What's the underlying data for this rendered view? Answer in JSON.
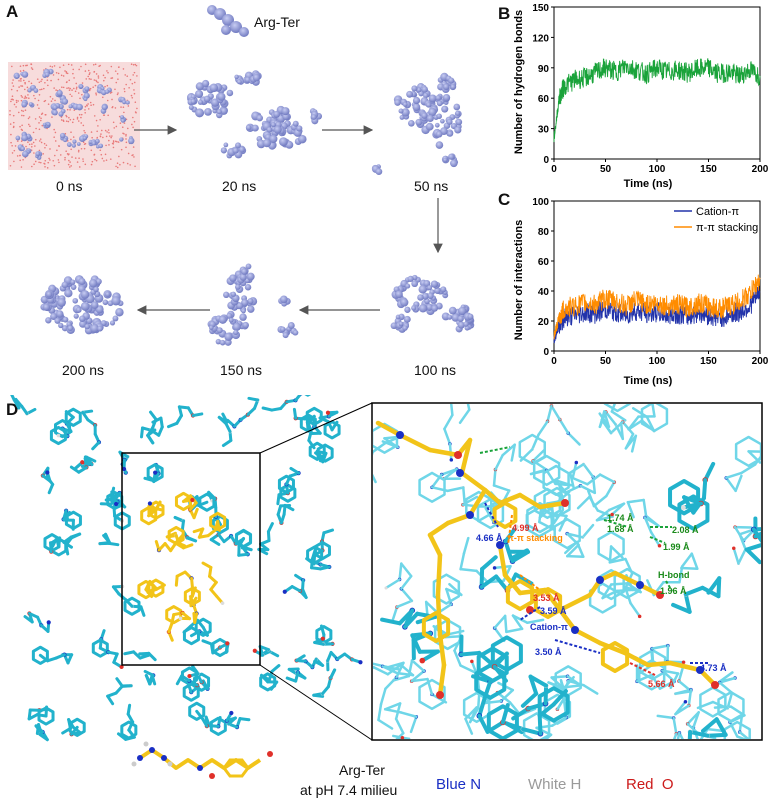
{
  "panel_letters": {
    "a": "A",
    "b": "B",
    "c": "C",
    "d": "D"
  },
  "panel_a": {
    "molecule_label": "Arg-Ter",
    "snapshots": [
      "0 ns",
      "20 ns",
      "50 ns",
      "100 ns",
      "150 ns",
      "200 ns"
    ],
    "colors": {
      "cluster": "#8f97d6",
      "water": "#e87a7a"
    }
  },
  "chart_data": [
    {
      "type": "line",
      "panel": "B",
      "ylabel": "Number of hydrogen bonds",
      "xlabel": "Time (ns)",
      "xlim": [
        0,
        200
      ],
      "ylim": [
        0,
        150
      ],
      "xticks": [
        0,
        50,
        100,
        150,
        200
      ],
      "yticks": [
        0,
        30,
        60,
        90,
        120,
        150
      ],
      "series": [
        {
          "color": "#1aa33a",
          "x": [
            0,
            5,
            10,
            20,
            30,
            40,
            50,
            60,
            70,
            80,
            90,
            100,
            110,
            120,
            130,
            140,
            150,
            160,
            170,
            180,
            190,
            200
          ],
          "values": [
            20,
            60,
            72,
            78,
            80,
            85,
            90,
            86,
            92,
            88,
            84,
            90,
            86,
            88,
            85,
            89,
            90,
            84,
            86,
            82,
            88,
            82
          ]
        }
      ]
    },
    {
      "type": "line",
      "panel": "C",
      "ylabel": "Number of interactions",
      "xlabel": "Time (ns)",
      "xlim": [
        0,
        200
      ],
      "ylim": [
        0,
        100
      ],
      "xticks": [
        0,
        50,
        100,
        150,
        200
      ],
      "yticks": [
        0,
        20,
        40,
        60,
        80,
        100
      ],
      "legend_position": "top-right",
      "series": [
        {
          "name": "Cation-π",
          "color": "#2233aa",
          "x": [
            0,
            5,
            10,
            20,
            30,
            40,
            50,
            60,
            70,
            80,
            90,
            100,
            110,
            120,
            130,
            140,
            150,
            160,
            170,
            180,
            190,
            200
          ],
          "values": [
            8,
            18,
            22,
            24,
            26,
            25,
            28,
            26,
            24,
            27,
            25,
            26,
            24,
            25,
            23,
            26,
            24,
            22,
            24,
            26,
            30,
            40
          ]
        },
        {
          "name": "π-π stacking",
          "color": "#ff8c00",
          "x": [
            0,
            5,
            10,
            20,
            30,
            40,
            50,
            60,
            70,
            80,
            90,
            100,
            110,
            120,
            130,
            140,
            150,
            160,
            170,
            180,
            190,
            200
          ],
          "values": [
            10,
            22,
            28,
            30,
            32,
            31,
            35,
            33,
            30,
            34,
            31,
            32,
            30,
            31,
            29,
            32,
            30,
            28,
            30,
            33,
            38,
            48
          ]
        }
      ]
    }
  ],
  "panel_d": {
    "distances": {
      "d466": "4.66 Å",
      "d499": "4.99 Å",
      "pipi": "π-π stacking",
      "d174": "1.74 Å",
      "d168": "1.68 Å",
      "d208": "2.08 Å",
      "d199": "1.99 Å",
      "hbond": "H-bond",
      "d196": "1.96 Å",
      "d353": "3.53 Å",
      "d359": "3.59 Å",
      "cationpi": "Cation-π",
      "d350": "3.50 Å",
      "d566": "5.66 Å",
      "d473": "4.73 Å"
    },
    "colors": {
      "cyan": "#22b2cc",
      "yellow": "#f2c419",
      "nitrogen": "#1a2fc4",
      "oxygen": "#e0302a",
      "hydrogen": "#dcdcdc"
    }
  },
  "legend": {
    "mol_line1": "Arg-Ter",
    "mol_line2": "at pH 7.4 milieu",
    "blue": "Blue N",
    "white": "White H",
    "red": "Red  O",
    "blue_color": "#1a2fc4",
    "white_color": "#9a9a9a",
    "red_color": "#cc1a1a"
  }
}
